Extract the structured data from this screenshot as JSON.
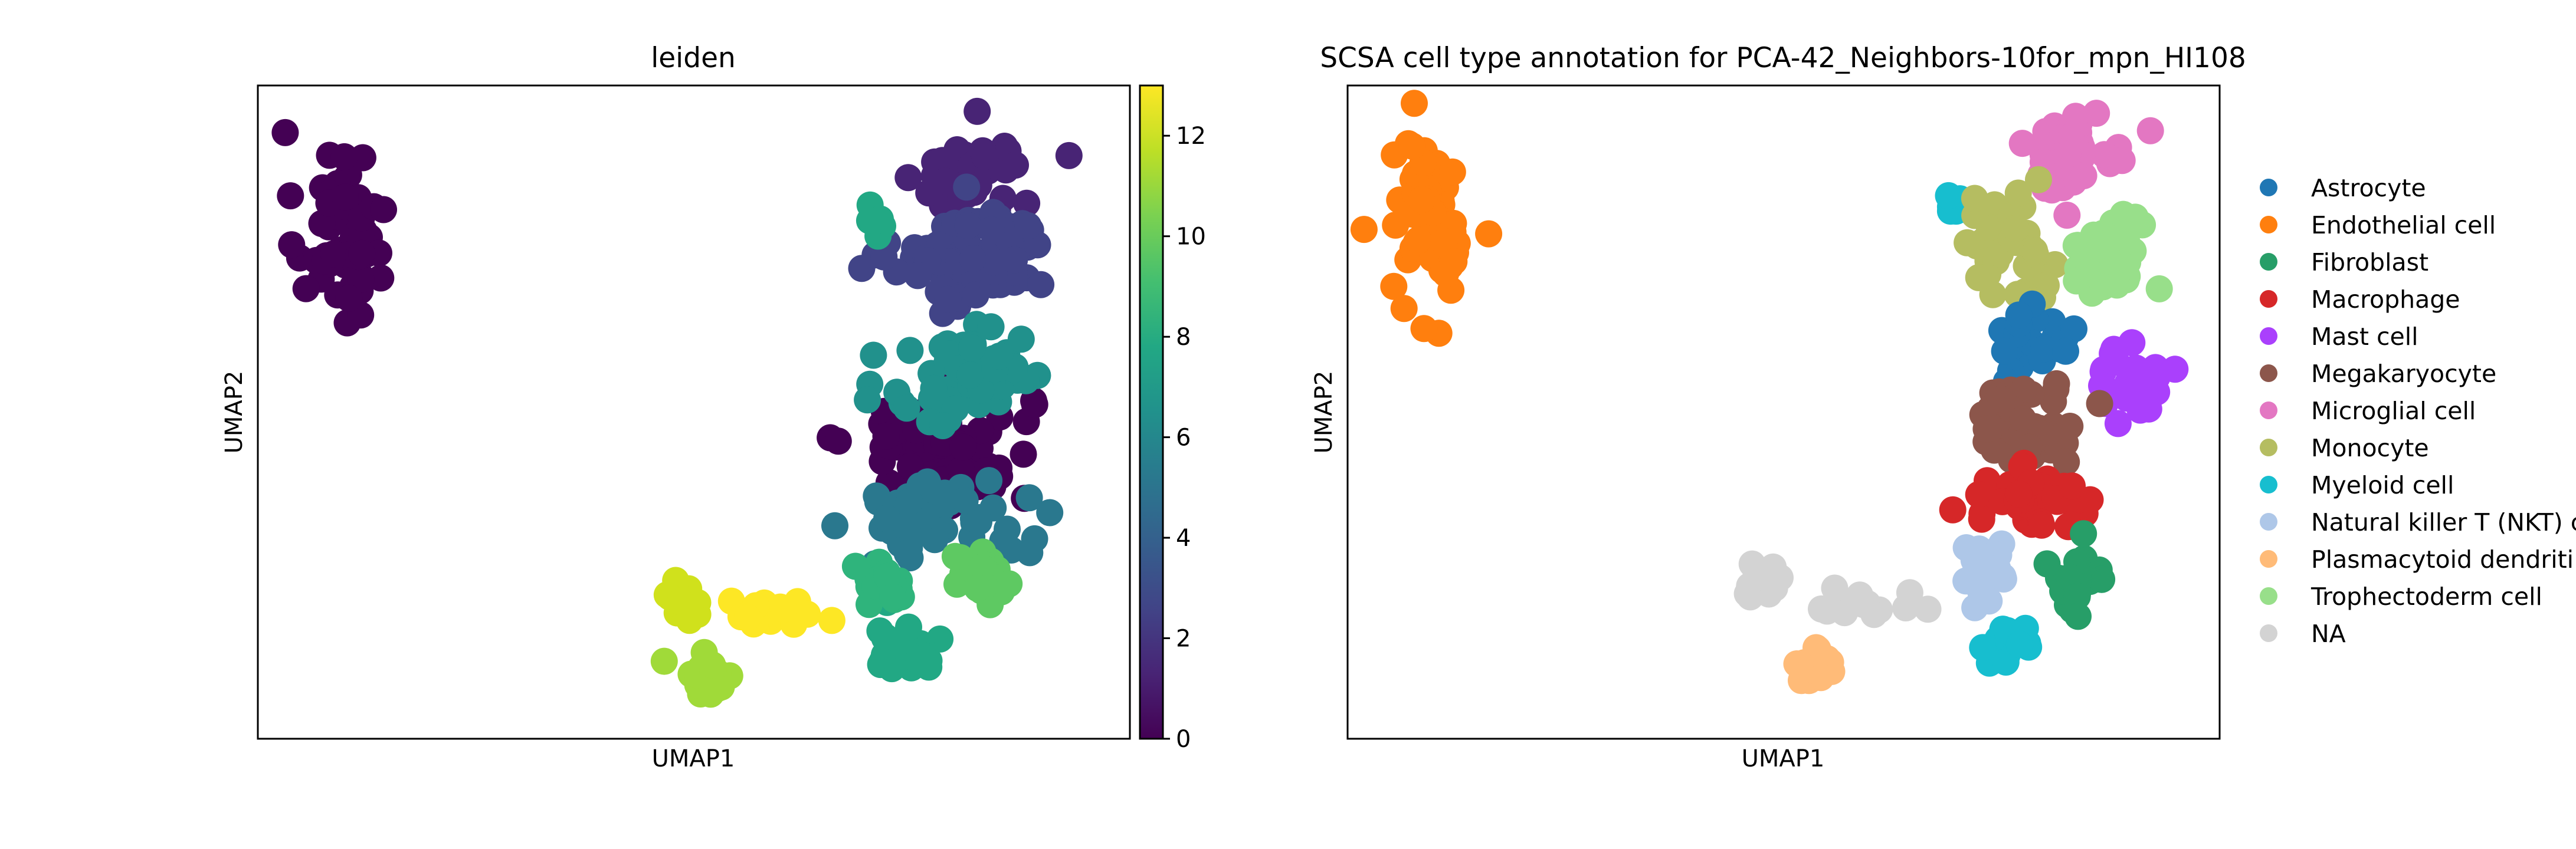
{
  "chart_data": [
    {
      "type": "scatter",
      "title": "leiden",
      "xlabel": "UMAP1",
      "ylabel": "UMAP2",
      "grid": false,
      "colorbar": {
        "colormap": "viridis",
        "range": [
          0,
          13
        ],
        "ticks": [
          "0",
          "2",
          "4",
          "6",
          "8",
          "10",
          "12"
        ]
      },
      "clusters": [
        {
          "label": 0,
          "color": "#440154",
          "center": [
            -7.5,
            8.1
          ],
          "spread": [
            0.75,
            1.5
          ],
          "n": 55
        },
        {
          "label": 0,
          "color": "#440154",
          "center": [
            3.5,
            4.4
          ],
          "spread": [
            1.55,
            0.85
          ],
          "n": 70
        },
        {
          "label": 1,
          "color": "#482475",
          "center": [
            4.2,
            9.0
          ],
          "spread": [
            0.95,
            0.75
          ],
          "n": 40
        },
        {
          "label": 2,
          "color": "#414487",
          "center": [
            4.1,
            7.6
          ],
          "spread": [
            1.3,
            0.8
          ],
          "n": 75
        },
        {
          "label": 4,
          "color": "#2a788e",
          "center": [
            3.5,
            3.2
          ],
          "spread": [
            1.45,
            0.6
          ],
          "n": 55
        },
        {
          "label": 6,
          "color": "#21918c",
          "center": [
            4.1,
            5.6
          ],
          "spread": [
            1.35,
            0.85
          ],
          "n": 65
        },
        {
          "label": 7,
          "color": "#22a884",
          "center": [
            2.3,
            8.2
          ],
          "spread": [
            0.25,
            0.2
          ],
          "n": 8
        },
        {
          "label": 7,
          "color": "#22a884",
          "center": [
            2.9,
            1.1
          ],
          "spread": [
            0.6,
            0.45
          ],
          "n": 30
        },
        {
          "label": 8,
          "color": "#2fb47c",
          "center": [
            2.6,
            2.1
          ],
          "spread": [
            0.45,
            0.35
          ],
          "n": 20
        },
        {
          "label": 9,
          "color": "#5ec962",
          "center": [
            4.3,
            2.1
          ],
          "spread": [
            0.5,
            0.45
          ],
          "n": 25
        },
        {
          "label": 10,
          "color": "#a0da39",
          "center": [
            -0.8,
            0.6
          ],
          "spread": [
            0.5,
            0.35
          ],
          "n": 25
        },
        {
          "label": 12,
          "color": "#d0e11c",
          "center": [
            -1.1,
            1.8
          ],
          "spread": [
            0.3,
            0.3
          ],
          "n": 18
        },
        {
          "label": 13,
          "color": "#fde725",
          "center": [
            0.4,
            1.6
          ],
          "spread": [
            0.7,
            0.22
          ],
          "n": 22
        }
      ],
      "xlim": [
        -9.0,
        7.0
      ],
      "ylim": [
        -0.5,
        10.5
      ]
    },
    {
      "type": "scatter",
      "title": "SCSA cell type annotation for PCA-42_Neighbors-10for_mpn_HI108",
      "xlabel": "UMAP1",
      "ylabel": "UMAP2",
      "grid": false,
      "legend_placement": "right",
      "legend": [
        {
          "name": "Astrocyte",
          "color": "#1f77b4"
        },
        {
          "name": "Endothelial cell",
          "color": "#ff7f0e"
        },
        {
          "name": "Fibroblast",
          "color": "#279e68"
        },
        {
          "name": "Macrophage",
          "color": "#d62728"
        },
        {
          "name": "Mast cell",
          "color": "#aa40fc"
        },
        {
          "name": "Megakaryocyte",
          "color": "#8c564b"
        },
        {
          "name": "Microglial cell",
          "color": "#e377c2"
        },
        {
          "name": "Monocyte",
          "color": "#b5bd61"
        },
        {
          "name": "Myeloid cell",
          "color": "#17becf"
        },
        {
          "name": "Natural killer T (NKT) c",
          "color": "#aec7e8"
        },
        {
          "name": "Plasmacytoid dendriti",
          "color": "#ffbb78"
        },
        {
          "name": "Trophectoderm cell",
          "color": "#98df8a"
        },
        {
          "name": "NA",
          "color": "#d3d3d3"
        }
      ],
      "clusters": [
        {
          "category": "Endothelial cell",
          "center": [
            -7.5,
            8.1
          ],
          "spread": [
            0.75,
            1.5
          ],
          "n": 55
        },
        {
          "category": "Microglial cell",
          "center": [
            4.3,
            9.4
          ],
          "spread": [
            0.9,
            0.6
          ],
          "n": 40
        },
        {
          "category": "Myeloid cell",
          "center": [
            2.2,
            8.5
          ],
          "spread": [
            0.25,
            0.2
          ],
          "n": 8
        },
        {
          "category": "Monocyte",
          "center": [
            3.1,
            7.8
          ],
          "spread": [
            0.75,
            0.8
          ],
          "n": 40
        },
        {
          "category": "Trophectoderm cell",
          "center": [
            5.0,
            7.6
          ],
          "spread": [
            0.7,
            0.8
          ],
          "n": 35
        },
        {
          "category": "Astrocyte",
          "center": [
            3.6,
            6.2
          ],
          "spread": [
            0.6,
            0.5
          ],
          "n": 25
        },
        {
          "category": "Mast cell",
          "center": [
            5.4,
            5.6
          ],
          "spread": [
            0.5,
            0.8
          ],
          "n": 30
        },
        {
          "category": "Megakaryocyte",
          "center": [
            3.5,
            4.8
          ],
          "spread": [
            1.05,
            0.6
          ],
          "n": 55
        },
        {
          "category": "Macrophage",
          "center": [
            3.5,
            3.5
          ],
          "spread": [
            1.1,
            0.45
          ],
          "n": 40
        },
        {
          "category": "Natural killer T (NKT) c",
          "center": [
            2.8,
            2.4
          ],
          "spread": [
            0.55,
            0.45
          ],
          "n": 25
        },
        {
          "category": "Fibroblast",
          "center": [
            4.4,
            2.1
          ],
          "spread": [
            0.5,
            0.55
          ],
          "n": 25
        },
        {
          "category": "Myeloid cell",
          "center": [
            3.1,
            1.1
          ],
          "spread": [
            0.55,
            0.3
          ],
          "n": 18
        },
        {
          "category": "NA",
          "center": [
            -1.3,
            2.2
          ],
          "spread": [
            0.3,
            0.35
          ],
          "n": 15
        },
        {
          "category": "NA",
          "center": [
            0.5,
            1.7
          ],
          "spread": [
            0.8,
            0.25
          ],
          "n": 14
        },
        {
          "category": "Plasmacytoid dendriti",
          "center": [
            -0.5,
            0.7
          ],
          "spread": [
            0.5,
            0.35
          ],
          "n": 20
        }
      ],
      "xlim": [
        -9.0,
        7.0
      ],
      "ylim": [
        -0.5,
        10.5
      ]
    }
  ]
}
